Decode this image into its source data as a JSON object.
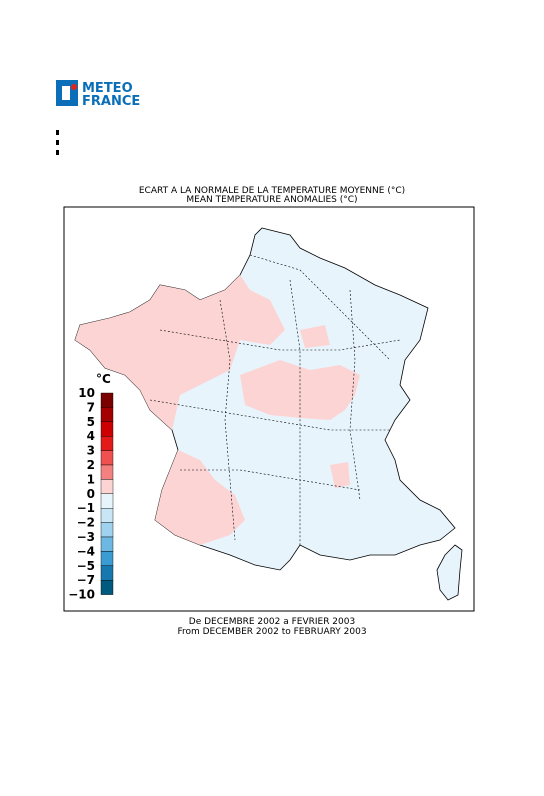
{
  "logo": {
    "line1": "METEO",
    "line2": "FRANCE"
  },
  "title": {
    "line1": "ECART A LA NORMALE DE LA TEMPERATURE MOYENNE (°C)",
    "line2": "MEAN TEMPERATURE ANOMALIES (°C)"
  },
  "legend": {
    "unit": "°C",
    "levels": [
      "10",
      "7",
      "5",
      "4",
      "3",
      "2",
      "1",
      "0",
      "−1",
      "−2",
      "−3",
      "−4",
      "−5",
      "−7",
      "−10"
    ],
    "colors": [
      "#7a0000",
      "#a40000",
      "#cc0000",
      "#e41a1a",
      "#f05050",
      "#f48080",
      "#fcd4d4",
      "#e8f4fc",
      "#c8e6f6",
      "#9fd2ee",
      "#6cb8e2",
      "#3a9cd2",
      "#1778b0",
      "#005a80"
    ]
  },
  "footer": {
    "line1": "De DECEMBRE 2002 a FEVRIER 2003",
    "line2": "From DECEMBER 2002 to FEBRUARY 2003"
  }
}
